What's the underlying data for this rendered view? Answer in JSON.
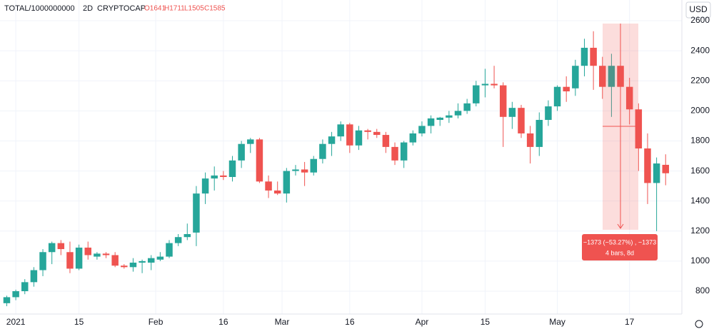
{
  "chart_data": {
    "type": "candlestick",
    "symbol": "TOTAL/1000000000",
    "interval": "2D",
    "exchange": "CRYPTOCAP",
    "ohlc_labels": [
      "O1641",
      "H1711",
      "L1505",
      "C1585"
    ],
    "currency": "USD",
    "up_color": "#26a69a",
    "down_color": "#ef5350",
    "grid": true,
    "xlim": [
      -3.5,
      147.6
    ],
    "ylim": [
      648,
      2738
    ],
    "xticks": [
      {
        "value": 0,
        "label": "2021"
      },
      {
        "value": 14,
        "label": "15"
      },
      {
        "value": 31,
        "label": "Feb"
      },
      {
        "value": 46,
        "label": "16"
      },
      {
        "value": 59,
        "label": "Mar"
      },
      {
        "value": 74,
        "label": "16"
      },
      {
        "value": 90,
        "label": "Apr"
      },
      {
        "value": 104,
        "label": "15"
      },
      {
        "value": 120,
        "label": "May"
      },
      {
        "value": 136,
        "label": "17"
      }
    ],
    "yticks": [
      800,
      1000,
      1200,
      1400,
      1600,
      1800,
      2000,
      2200,
      2400,
      2600
    ],
    "x": [
      -2,
      0,
      2,
      4,
      6,
      8,
      10,
      12,
      14,
      16,
      18,
      20,
      22,
      24,
      26,
      28,
      30,
      32,
      34,
      36,
      38,
      40,
      42,
      44,
      46,
      48,
      50,
      52,
      54,
      56,
      58,
      60,
      62,
      64,
      66,
      68,
      70,
      72,
      74,
      76,
      78,
      80,
      82,
      84,
      86,
      88,
      90,
      92,
      94,
      96,
      98,
      100,
      102,
      104,
      106,
      108,
      110,
      112,
      114,
      116,
      118,
      120,
      122,
      124,
      126,
      128,
      130,
      132,
      134,
      136,
      138,
      140,
      142,
      144
    ],
    "open": [
      720,
      760,
      800,
      860,
      940,
      1060,
      1120,
      1060,
      950,
      1090,
      1030,
      1050,
      1040,
      970,
      960,
      990,
      990,
      1010,
      1030,
      1120,
      1160,
      1190,
      1450,
      1550,
      1570,
      1560,
      1670,
      1780,
      1810,
      1530,
      1470,
      1450,
      1600,
      1610,
      1590,
      1680,
      1780,
      1830,
      1910,
      1770,
      1870,
      1860,
      1840,
      1760,
      1670,
      1790,
      1850,
      1900,
      1940,
      1955,
      1970,
      2000,
      2050,
      2170,
      2180,
      2170,
      1960,
      2020,
      1850,
      1760,
      1940,
      2030,
      2160,
      2150,
      2300,
      2420,
      2300,
      2160,
      2300,
      2160,
      2010,
      1750,
      1520,
      1641
    ],
    "high": [
      770,
      810,
      880,
      960,
      1080,
      1130,
      1140,
      1130,
      1110,
      1130,
      1060,
      1060,
      1060,
      980,
      1020,
      1010,
      1040,
      1060,
      1140,
      1180,
      1250,
      1500,
      1590,
      1630,
      1600,
      1700,
      1800,
      1820,
      1820,
      1570,
      1530,
      1620,
      1640,
      1660,
      1700,
      1810,
      1860,
      1930,
      1920,
      1900,
      1880,
      1880,
      1860,
      1790,
      1800,
      1870,
      1930,
      1970,
      1960,
      2000,
      2050,
      2080,
      2200,
      2280,
      2300,
      2190,
      2060,
      2040,
      1900,
      1990,
      2070,
      2170,
      2230,
      2340,
      2480,
      2530,
      2360,
      2380,
      2330,
      2220,
      2050,
      1850,
      1690,
      1711
    ],
    "low": [
      700,
      740,
      780,
      830,
      900,
      980,
      1040,
      920,
      940,
      1010,
      1010,
      1020,
      960,
      950,
      930,
      920,
      940,
      1000,
      1020,
      1100,
      1140,
      1100,
      1380,
      1470,
      1540,
      1530,
      1620,
      1720,
      1520,
      1420,
      1440,
      1390,
      1570,
      1500,
      1570,
      1650,
      1700,
      1800,
      1720,
      1740,
      1810,
      1820,
      1720,
      1640,
      1620,
      1770,
      1830,
      1850,
      1900,
      1920,
      1950,
      1980,
      2030,
      2090,
      2150,
      1760,
      1880,
      1820,
      1650,
      1700,
      1900,
      2000,
      2060,
      2100,
      2230,
      2140,
      2080,
      1960,
      2140,
      1910,
      1600,
      1380,
      1200,
      1505
    ],
    "close": [
      760,
      800,
      860,
      940,
      1060,
      1120,
      1080,
      950,
      1090,
      1040,
      1050,
      1040,
      970,
      960,
      990,
      1000,
      1020,
      1030,
      1120,
      1160,
      1180,
      1450,
      1550,
      1570,
      1560,
      1670,
      1780,
      1810,
      1530,
      1470,
      1450,
      1600,
      1610,
      1590,
      1680,
      1780,
      1830,
      1910,
      1770,
      1870,
      1860,
      1840,
      1760,
      1670,
      1790,
      1850,
      1900,
      1950,
      1955,
      1970,
      2000,
      2050,
      2170,
      2180,
      2170,
      1960,
      2020,
      1850,
      1760,
      1940,
      2030,
      2160,
      2130,
      2300,
      2420,
      2300,
      2160,
      2300,
      2160,
      2010,
      1750,
      1520,
      1650,
      1585
    ],
    "measure": {
      "label": "−1373 (−53.27%) , −1373",
      "sublabel": "4 bars, 8d"
    }
  }
}
